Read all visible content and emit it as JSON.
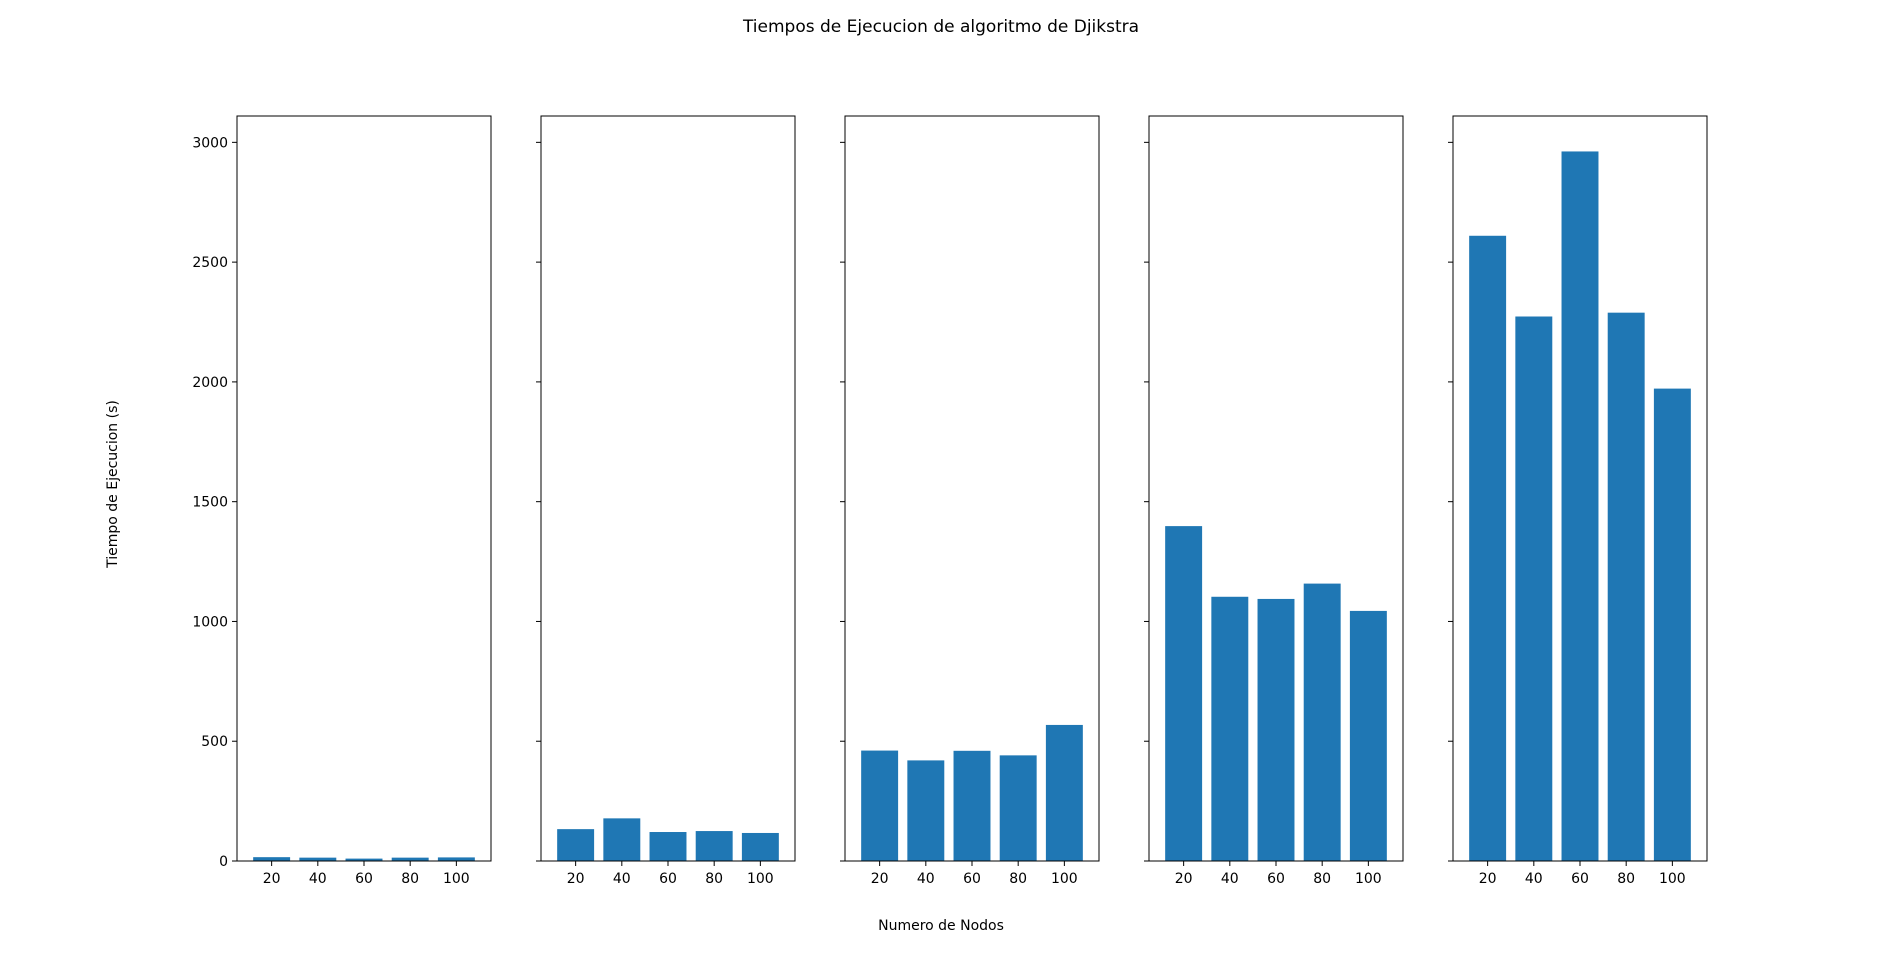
{
  "chart_data": {
    "type": "bar",
    "title": "Tiempos de Ejecucion de algoritmo de Djikstra",
    "xlabel": "Numero de Nodos",
    "ylabel": "Tiempo de Ejecucion (s)",
    "ylim": [
      0,
      3110
    ],
    "yticks": [
      0,
      500,
      1000,
      1500,
      2000,
      2500,
      3000
    ],
    "bar_color": "#1f77b4",
    "grid": false,
    "shared_y": true,
    "categories": [
      "20",
      "40",
      "60",
      "80",
      "100"
    ],
    "panels": [
      {
        "values": [
          16,
          14,
          10,
          14,
          15
        ]
      },
      {
        "values": [
          133,
          178,
          121,
          125,
          117
        ]
      },
      {
        "values": [
          461,
          420,
          460,
          441,
          568
        ]
      },
      {
        "values": [
          1398,
          1103,
          1094,
          1158,
          1044
        ]
      },
      {
        "values": [
          2610,
          2273,
          2962,
          2289,
          1972
        ]
      }
    ]
  }
}
